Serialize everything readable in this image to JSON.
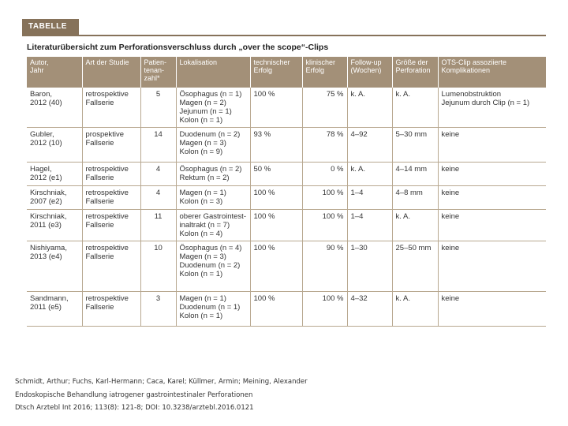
{
  "table_tag": "TABELLE",
  "table_title": "Literaturübersicht zum Perforationsverschluss durch „over the scope“-Clips",
  "columns": [
    "Autor,\nJahr",
    "Art der Studie",
    "Patien-\ntenan-\nzahl*",
    "Lokalisation",
    "technischer\nErfolg",
    "klinischer\nErfolg",
    "Follow-up\n(Wochen)",
    "Größe der\nPerforation",
    "OTS-Clip assoziierte\nKomplikationen"
  ],
  "rows": [
    {
      "author": "Baron,\n2012 (40)",
      "study": "retrospektive\nFallserie",
      "n": "5",
      "location": "Ösophagus (n = 1)\nMagen (n = 2)\nJejunum (n = 1)\nKolon (n = 1)",
      "technical": "100 %",
      "clinical": "75 %",
      "followup": "k. A.",
      "size": "k. A.",
      "complications": "Lumenobstruktion\nJejunum durch Clip (n = 1)"
    },
    {
      "author": "Gubler,\n2012 (10)",
      "study": "prospektive\nFallserie",
      "n": "14",
      "location": "Duodenum (n = 2)\nMagen (n = 3)\nKolon (n = 9)",
      "technical": "93 %",
      "clinical": "78 %",
      "followup": "4–92",
      "size": "5–30 mm",
      "complications": "keine"
    },
    {
      "author": "Hagel,\n2012 (e1)",
      "study": "retrospektive\nFallserie",
      "n": "4",
      "location": "Ösophagus (n = 2)\nRektum (n = 2)",
      "technical": "50 %",
      "clinical": "0 %",
      "followup": "k. A.",
      "size": "4–14 mm",
      "complications": "keine"
    },
    {
      "author": "Kirschniak,\n2007 (e2)",
      "study": "retrospektive\nFallserie",
      "n": "4",
      "location": "Magen (n = 1)\nKolon (n = 3)",
      "technical": "100 %",
      "clinical": "100 %",
      "followup": "1–4",
      "size": "4–8 mm",
      "complications": "keine"
    },
    {
      "author": "Kirschniak,\n2011 (e3)",
      "study": "retrospektive\nFallserie",
      "n": "11",
      "location": "oberer Gastrointest-\ninaltrakt (n = 7)\nKolon (n = 4)",
      "technical": "100 %",
      "clinical": "100 %",
      "followup": "1–4",
      "size": "k. A.",
      "complications": "keine"
    },
    {
      "author": "Nishiyama,\n2013 (e4)",
      "study": "retrospektive\nFallserie",
      "n": "10",
      "location": "Ösophagus (n = 4)\nMagen (n = 3)\nDuodenum (n = 2)\nKolon (n = 1)",
      "technical": "100 %",
      "clinical": "90 %",
      "followup": "1–30",
      "size": "25–50 mm",
      "complications": "keine"
    },
    {
      "author": "Sandmann,\n2011 (e5)",
      "study": "retrospektive\nFallserie",
      "n": "3",
      "location": "Magen (n = 1)\nDuodenum (n = 1)\nKolon (n = 1)",
      "technical": "100 %",
      "clinical": "100 %",
      "followup": "4–32",
      "size": "k. A.",
      "complications": "keine"
    }
  ],
  "caption": {
    "authors": "Schmidt, Arthur; Fuchs, Karl-Hermann; Caca, Karel; Küllmer, Armin; Meining, Alexander",
    "title": "Endoskopische Behandlung iatrogener gastrointestinaler Perforationen",
    "citation": "Dtsch Arztebl Int 2016; 113(8): 121-8; DOI: 10.3238/arztebl.2016.0121"
  }
}
